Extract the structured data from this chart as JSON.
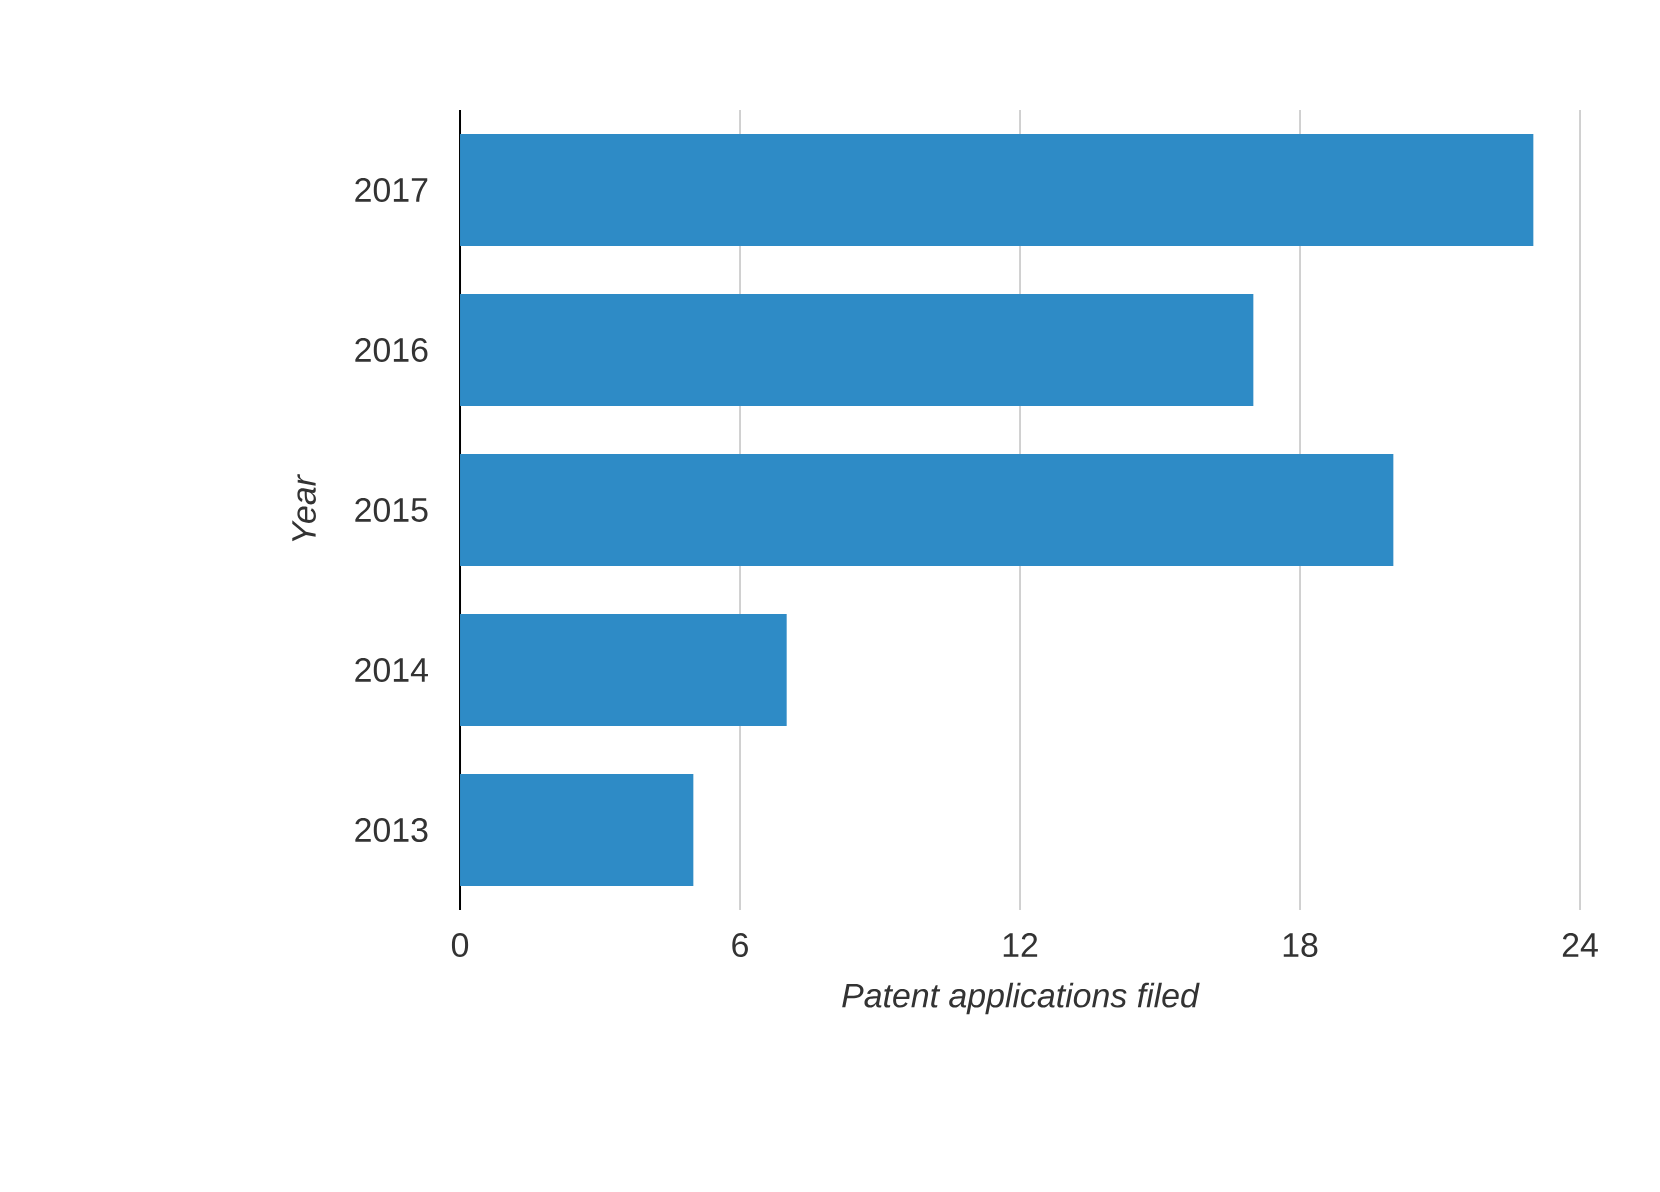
{
  "chart_data": {
    "type": "bar",
    "orientation": "horizontal",
    "xlabel": "Patent applications filed",
    "ylabel": "Year",
    "categories": [
      "2017",
      "2016",
      "2015",
      "2014",
      "2013"
    ],
    "values": [
      23,
      17,
      20,
      7,
      5
    ],
    "color": "#2e8bc6",
    "xlim": [
      0,
      24
    ],
    "xticks": [
      0,
      6,
      12,
      18,
      24
    ],
    "grid": "x"
  }
}
